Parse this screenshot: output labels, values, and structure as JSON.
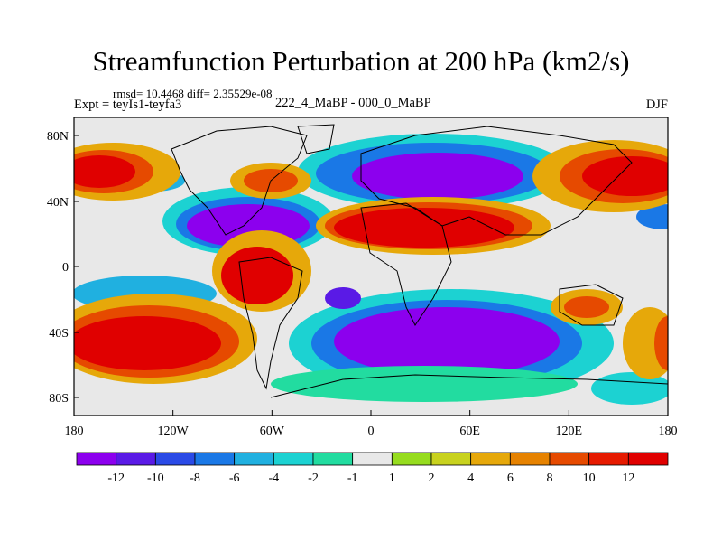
{
  "title": "Streamfunction Perturbation at 200 hPa (km2/s)",
  "stats_line": "rmsd= 10.4468 diff= 2.35529e-08",
  "left_label": "Expt = teyIs1-teyfa3",
  "center_label": "222_4_MaBP - 000_0_MaBP",
  "right_label": "DJF",
  "map": {
    "lat_ticks": [
      "80N",
      "40N",
      "0",
      "40S",
      "80S"
    ],
    "lon_ticks": [
      "180",
      "120W",
      "60W",
      "0",
      "60E",
      "120E",
      "180"
    ],
    "projection": "cylindrical equidistant",
    "lon_range": [
      -180,
      180
    ],
    "lat_range": [
      -90,
      90
    ]
  },
  "colorbar": {
    "labels": [
      "-12",
      "-10",
      "-8",
      "-6",
      "-4",
      "-2",
      "-1",
      "1",
      "2",
      "4",
      "6",
      "8",
      "10",
      "12"
    ],
    "colors": [
      "#8c00ee",
      "#5a1ae6",
      "#2a4ae6",
      "#1a78e6",
      "#20b0e0",
      "#1cd2d2",
      "#22dca0",
      "#e8e8e8",
      "#96dc1e",
      "#c8d21e",
      "#e6a80a",
      "#e68200",
      "#e64a00",
      "#e61a00",
      "#e00000"
    ]
  }
}
